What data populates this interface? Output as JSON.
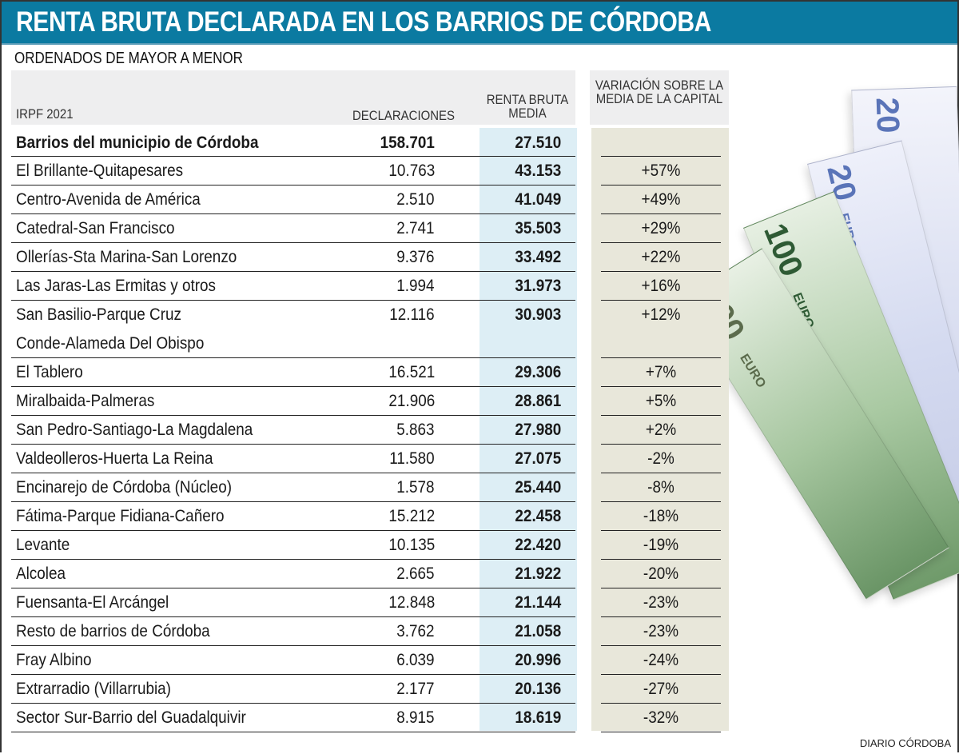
{
  "title": "RENTA BRUTA DECLARADA EN LOS BARRIOS DE CÓRDOBA",
  "subtitle": "ORDENADOS DE MAYOR A MENOR",
  "source": "DIARIO CÓRDOBA",
  "banknotes": {
    "small": "20",
    "large": "100",
    "word": "EURO"
  },
  "colors": {
    "title_bar": "#0b7aa1",
    "renta_column": "#ddeef5",
    "variation_column": "#e8e7da",
    "header_band": "#eeeeef"
  },
  "chart_data": {
    "type": "table",
    "columns": [
      "IRPF 2021",
      "DECLARACIONES",
      "RENTA BRUTA MEDIA",
      "VARIACIÓN SOBRE LA MEDIA DE LA CAPITAL"
    ],
    "rows": [
      {
        "name": "Barrios del municipio de Córdoba",
        "declaraciones": "158.701",
        "renta": "27.510",
        "variacion": ""
      },
      {
        "name": "El Brillante-Quitapesares",
        "declaraciones": "10.763",
        "renta": "43.153",
        "variacion": "+57%"
      },
      {
        "name": "Centro-Avenida de América",
        "declaraciones": "2.510",
        "renta": "41.049",
        "variacion": "+49%"
      },
      {
        "name": "Catedral-San Francisco",
        "declaraciones": "2.741",
        "renta": "35.503",
        "variacion": "+29%"
      },
      {
        "name": "Ollerías-Sta Marina-San Lorenzo",
        "declaraciones": "9.376",
        "renta": "33.492",
        "variacion": "+22%"
      },
      {
        "name": "Las Jaras-Las Ermitas y otros",
        "declaraciones": "1.994",
        "renta": "31.973",
        "variacion": "+16%"
      },
      {
        "name": "San Basilio-Parque Cruz\nConde-Alameda Del Obispo",
        "declaraciones": "12.116",
        "renta": "30.903",
        "variacion": "+12%"
      },
      {
        "name": "El Tablero",
        "declaraciones": "16.521",
        "renta": "29.306",
        "variacion": "+7%"
      },
      {
        "name": "Miralbaida-Palmeras",
        "declaraciones": "21.906",
        "renta": "28.861",
        "variacion": "+5%"
      },
      {
        "name": "San Pedro-Santiago-La Magdalena",
        "declaraciones": "5.863",
        "renta": "27.980",
        "variacion": "+2%"
      },
      {
        "name": "Valdeolleros-Huerta La Reina",
        "declaraciones": "11.580",
        "renta": "27.075",
        "variacion": "-2%"
      },
      {
        "name": "Encinarejo de Córdoba (Núcleo)",
        "declaraciones": "1.578",
        "renta": "25.440",
        "variacion": "-8%"
      },
      {
        "name": "Fátima-Parque Fidiana-Cañero",
        "declaraciones": "15.212",
        "renta": "22.458",
        "variacion": "-18%"
      },
      {
        "name": "Levante",
        "declaraciones": "10.135",
        "renta": "22.420",
        "variacion": "-19%"
      },
      {
        "name": "Alcolea",
        "declaraciones": "2.665",
        "renta": "21.922",
        "variacion": "-20%"
      },
      {
        "name": "Fuensanta-El Arcángel",
        "declaraciones": "12.848",
        "renta": "21.144",
        "variacion": "-23%"
      },
      {
        "name": "Resto de barrios de Córdoba",
        "declaraciones": "3.762",
        "renta": "21.058",
        "variacion": "-23%"
      },
      {
        "name": "Fray Albino",
        "declaraciones": "6.039",
        "renta": "20.996",
        "variacion": "-24%"
      },
      {
        "name": "Extrarradio (Villarrubia)",
        "declaraciones": "2.177",
        "renta": "20.136",
        "variacion": "-27%"
      },
      {
        "name": "Sector Sur-Barrio del Guadalquivir",
        "declaraciones": "8.915",
        "renta": "18.619",
        "variacion": "-32%"
      }
    ]
  }
}
